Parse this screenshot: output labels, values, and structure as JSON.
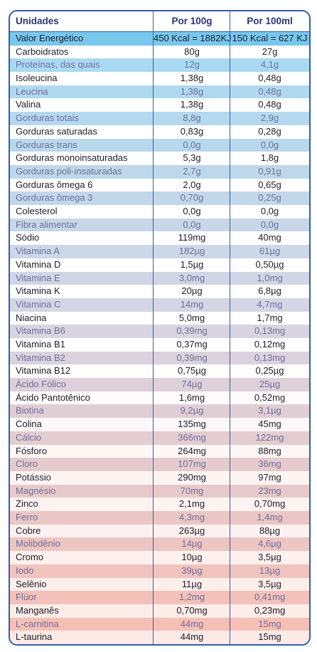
{
  "table": {
    "header": [
      "Unidades",
      "Por 100g",
      "Por 100ml"
    ],
    "rows": [
      [
        "Valor Energético",
        "450 Kcal = 1882KJ",
        "150 Kcal = 627 KJ"
      ],
      [
        "Carboidratos",
        "80g",
        "27g"
      ],
      [
        "Proteínas, das quais",
        "12g",
        "4,1g"
      ],
      [
        "Isoleucina",
        "1,38g",
        "0,48g"
      ],
      [
        "Leucina",
        "1,38g",
        "0,48g"
      ],
      [
        "Valina",
        "1,38g",
        "0,48g"
      ],
      [
        "Gorduras totais",
        "8,8g",
        "2,9g"
      ],
      [
        "Gorduras saturadas",
        "0,83g",
        "0,28g"
      ],
      [
        "Gorduras trans",
        "0,0g",
        "0,0g"
      ],
      [
        "Gorduras monoinsaturadas",
        "5,3g",
        "1,8g"
      ],
      [
        "Gorduras poli-insaturadas",
        "2,7g",
        "0,91g"
      ],
      [
        "Gorduras ômega 6",
        "2,0g",
        "0,65g"
      ],
      [
        "Gorduras ômega 3",
        "0,70g",
        "0,25g"
      ],
      [
        "Colesterol",
        "0,0g",
        "0,0g"
      ],
      [
        "Fibra alimentar",
        "0,0g",
        "0,0g"
      ],
      [
        "Sódio",
        "119mg",
        "40mg"
      ],
      [
        "Vitamina A",
        "182µg",
        "61µg"
      ],
      [
        "Vitamina D",
        "1,5µg",
        "0,50µg"
      ],
      [
        "Vitamina E",
        "3,0mg",
        "1,0mg"
      ],
      [
        "Vitamina K",
        "20µg",
        "6,8µg"
      ],
      [
        "Vitamina C",
        "14mg",
        "4,7mg"
      ],
      [
        "Niacina",
        "5,0mg",
        "1,7mg"
      ],
      [
        "Vitamina B6",
        "0,39mg",
        "0,13mg"
      ],
      [
        "Vitamina B1",
        "0,37mg",
        "0,12mg"
      ],
      [
        "Vitamina B2",
        "0,39mg",
        "0,13mg"
      ],
      [
        "Vitamina B12",
        "0,75µg",
        "0,25µg"
      ],
      [
        "Ácido Fólico",
        "74µg",
        "25µg"
      ],
      [
        "Ácido Pantotênico",
        "1,6mg",
        "0,52mg"
      ],
      [
        "Biotina",
        "9,2µg",
        "3,1µg"
      ],
      [
        "Colina",
        "135mg",
        "45mg"
      ],
      [
        "Cálcio",
        "366mg",
        "122mg"
      ],
      [
        "Fósforo",
        "264mg",
        "88mg"
      ],
      [
        "Cloro",
        "107mg",
        "36mg"
      ],
      [
        "Potássio",
        "290mg",
        "97mg"
      ],
      [
        "Magnésio",
        "70mg",
        "23mg"
      ],
      [
        "Zinco",
        "2,1mg",
        "0,70mg"
      ],
      [
        "Ferro",
        "4,3mg",
        "1,4mg"
      ],
      [
        "Cobre",
        "263µg",
        "88µg"
      ],
      [
        "Molibdênio",
        "14µg",
        "4,6µg"
      ],
      [
        "Cromo",
        "10µg",
        "3,5µg"
      ],
      [
        "Iodo",
        "39µg",
        "13µg"
      ],
      [
        "Selênio",
        "11µg",
        "3,5µg"
      ],
      [
        "Flúor",
        "1,2mg",
        "0,41mg"
      ],
      [
        "Manganês",
        "0,70mg",
        "0,23mg"
      ],
      [
        "L-carnitina",
        "44mg",
        "15mg"
      ],
      [
        "L-taurina",
        "44mg",
        "15mg"
      ]
    ]
  }
}
